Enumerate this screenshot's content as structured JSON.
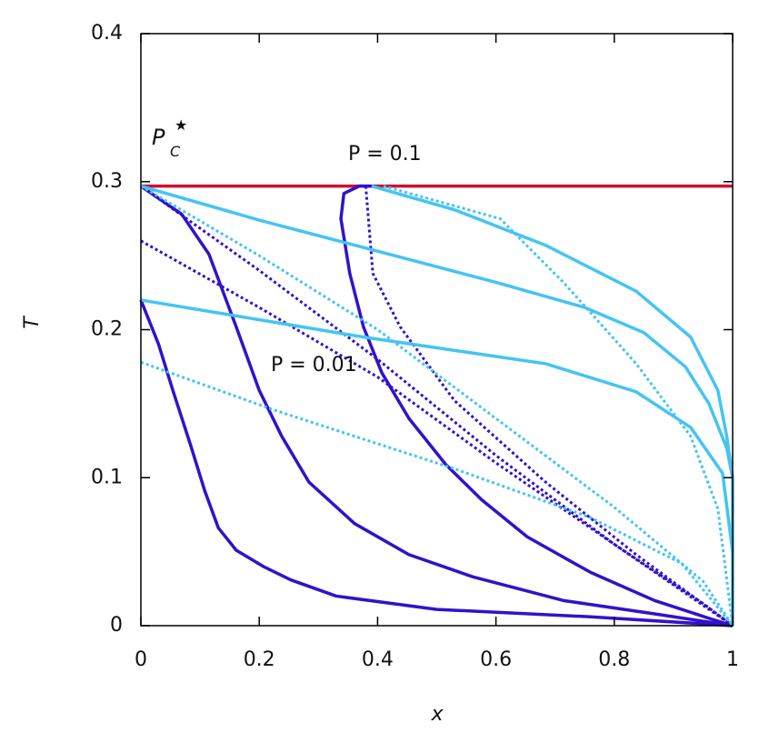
{
  "chart_data": {
    "type": "line",
    "xlabel": "x",
    "ylabel": "T",
    "xlim": [
      0,
      1
    ],
    "ylim": [
      0,
      0.4
    ],
    "xticks": [
      0,
      0.2,
      0.4,
      0.6,
      0.8,
      1
    ],
    "yticks": [
      0,
      0.1,
      0.2,
      0.3,
      0.4
    ],
    "annotations": [
      "P = 0.1",
      "P = 0.01"
    ],
    "critical_label": {
      "symbol": "P",
      "subscript": "C",
      "superscript": "★"
    },
    "series": [
      {
        "color": "#cc1133",
        "dashed": false,
        "x": [
          0,
          1
        ],
        "values": [
          0.297,
          0.297
        ]
      },
      {
        "color": "#3311cc",
        "dashed": false,
        "x": [
          0,
          0.03,
          0.054,
          0.084,
          0.108,
          0.131,
          0.161,
          0.207,
          0.253,
          0.33,
          0.5,
          0.76,
          1
        ],
        "values": [
          0.22,
          0.19,
          0.159,
          0.122,
          0.091,
          0.066,
          0.051,
          0.04,
          0.031,
          0.02,
          0.011,
          0.006,
          0
        ]
      },
      {
        "color": "#3311cc",
        "dashed": false,
        "x": [
          0,
          0.069,
          0.115,
          0.161,
          0.2,
          0.238,
          0.284,
          0.361,
          0.453,
          0.561,
          0.714,
          0.868,
          1
        ],
        "values": [
          0.297,
          0.278,
          0.251,
          0.202,
          0.159,
          0.128,
          0.097,
          0.069,
          0.048,
          0.033,
          0.017,
          0.008,
          0
        ]
      },
      {
        "color": "#3311cc",
        "dashed": false,
        "x": [
          0.39,
          0.369,
          0.343,
          0.338,
          0.353,
          0.376,
          0.407,
          0.453,
          0.515,
          0.576,
          0.653,
          0.76,
          0.868,
          0.96,
          1
        ],
        "values": [
          0.297,
          0.297,
          0.292,
          0.275,
          0.238,
          0.202,
          0.171,
          0.14,
          0.109,
          0.085,
          0.06,
          0.036,
          0.017,
          0.005,
          0
        ]
      },
      {
        "color": "#3311cc",
        "dashed": true,
        "x": [
          0,
          0.2,
          0.4,
          0.6,
          0.8,
          0.95,
          1
        ],
        "values": [
          0.297,
          0.24,
          0.18,
          0.115,
          0.055,
          0.015,
          0
        ]
      },
      {
        "color": "#3311cc",
        "dashed": true,
        "x": [
          0,
          0.2,
          0.4,
          0.6,
          0.8,
          1
        ],
        "values": [
          0.26,
          0.215,
          0.168,
          0.11,
          0.055,
          0
        ]
      },
      {
        "color": "#3311cc",
        "dashed": true,
        "x": [
          0.38,
          0.392,
          0.438,
          0.53,
          0.684,
          0.837,
          1
        ],
        "values": [
          0.297,
          0.238,
          0.202,
          0.152,
          0.097,
          0.048,
          0
        ]
      },
      {
        "color": "#44c4f4",
        "dashed": false,
        "x": [
          0,
          0.2,
          0.4,
          0.6,
          0.75,
          0.85,
          0.92,
          0.96,
          0.99,
          1
        ],
        "values": [
          0.297,
          0.274,
          0.253,
          0.232,
          0.215,
          0.198,
          0.175,
          0.15,
          0.12,
          0.1
        ]
      },
      {
        "color": "#44c4f4",
        "dashed": false,
        "x": [
          0,
          0.376,
          0.684,
          0.837,
          0.929,
          0.983,
          1
        ],
        "values": [
          0.22,
          0.195,
          0.177,
          0.158,
          0.134,
          0.103,
          0.05
        ]
      },
      {
        "color": "#44c4f4",
        "dashed": false,
        "x": [
          0.39,
          0.53,
          0.684,
          0.837,
          0.929,
          0.975,
          0.99,
          1,
          1
        ],
        "values": [
          0.297,
          0.281,
          0.257,
          0.226,
          0.195,
          0.159,
          0.128,
          0.1,
          0
        ]
      },
      {
        "color": "#44c4f4",
        "dashed": true,
        "x": [
          0,
          0.223,
          0.53,
          0.76,
          0.914,
          1
        ],
        "values": [
          0.178,
          0.146,
          0.106,
          0.073,
          0.042,
          0
        ]
      },
      {
        "color": "#44c4f4",
        "dashed": true,
        "x": [
          0,
          0.2,
          0.4,
          0.6,
          0.8,
          0.95,
          1
        ],
        "values": [
          0.297,
          0.25,
          0.2,
          0.14,
          0.08,
          0.03,
          0
        ]
      },
      {
        "color": "#44c4f4",
        "dashed": true,
        "x": [
          0.41,
          0.607,
          0.714,
          0.837,
          0.929,
          0.975,
          1
        ],
        "values": [
          0.297,
          0.275,
          0.232,
          0.177,
          0.128,
          0.079,
          0
        ]
      }
    ]
  }
}
